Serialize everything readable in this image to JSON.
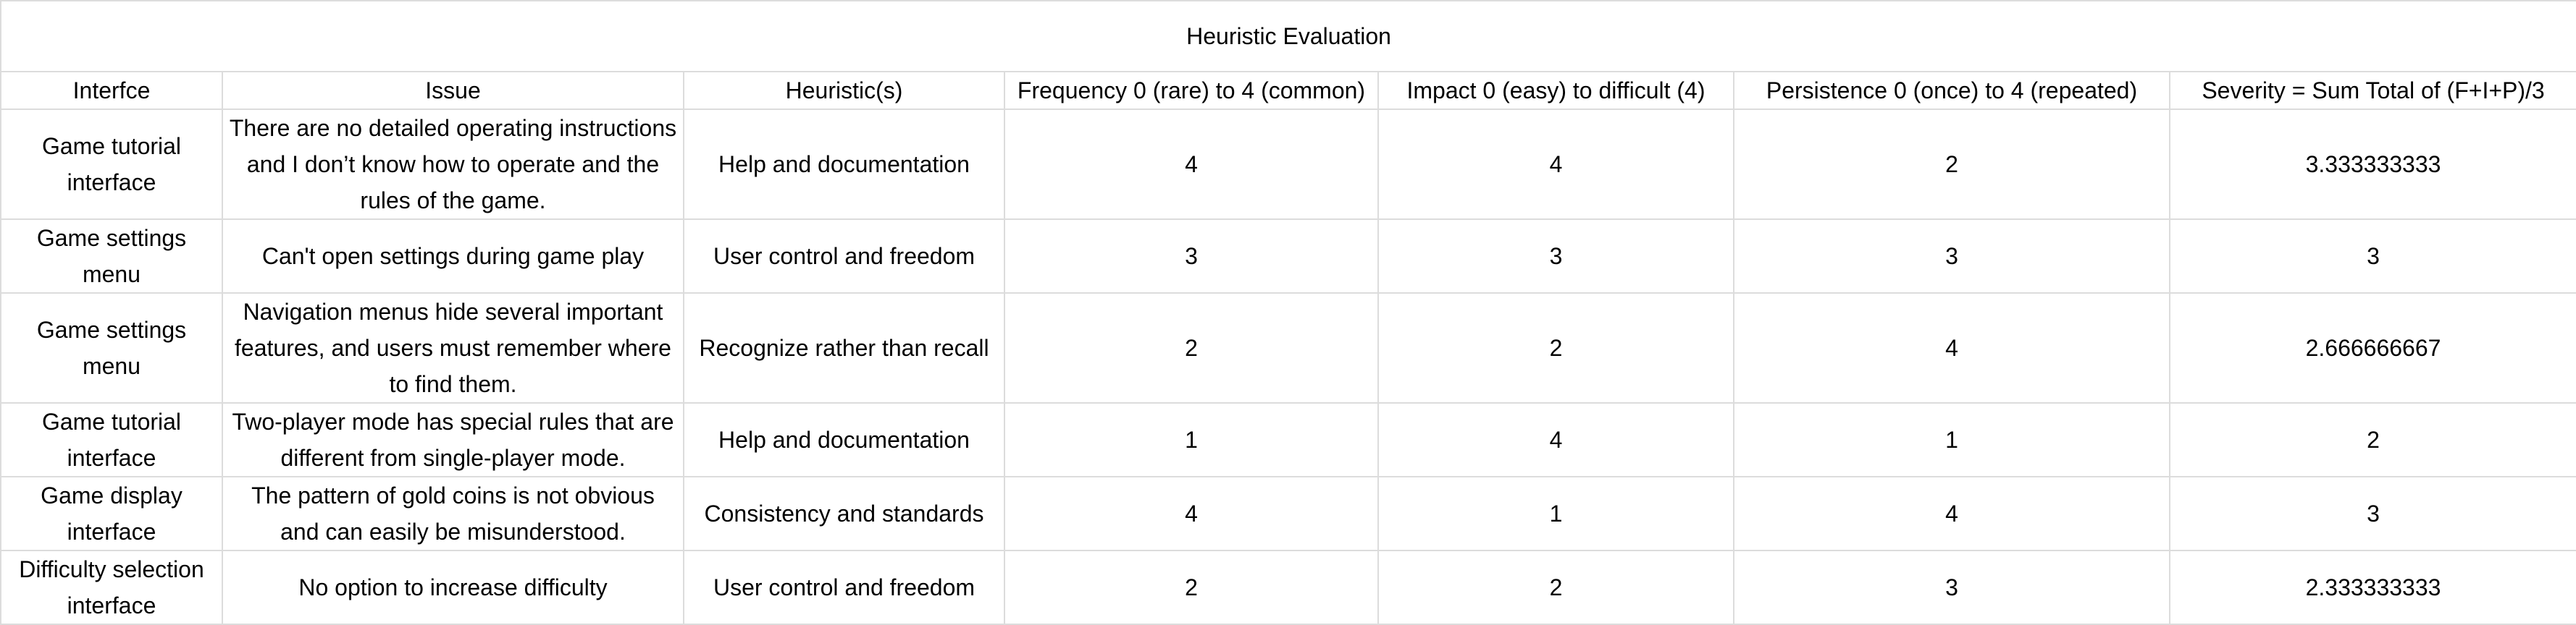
{
  "title": "Heuristic Evaluation",
  "columns": [
    "Interfce",
    "Issue",
    "Heuristic(s)",
    "Frequency 0 (rare) to 4 (common)",
    "Impact 0 (easy) to difficult (4)",
    "Persistence 0 (once) to 4 (repeated)",
    "Severity = Sum Total of (F+I+P)/3"
  ],
  "rows": [
    {
      "interface": "Game tutorial interface",
      "issue": "There are no detailed operating instructions and I don’t know how to operate and the rules of the game.",
      "heuristic": "Help and documentation",
      "frequency": "4",
      "impact": "4",
      "persistence": "2",
      "severity": "3.333333333"
    },
    {
      "interface": "Game settings menu",
      "issue": "Can't open settings during game play",
      "heuristic": "User control and freedom",
      "frequency": "3",
      "impact": "3",
      "persistence": "3",
      "severity": "3"
    },
    {
      "interface": "Game settings menu",
      "issue": "Navigation menus hide several important features, and users must remember where to find them.",
      "heuristic": "Recognize rather than recall",
      "frequency": "2",
      "impact": "2",
      "persistence": "4",
      "severity": "2.666666667"
    },
    {
      "interface": "Game tutorial interface",
      "issue": "Two-player mode has special rules that are different from single-player mode.",
      "heuristic": "Help and documentation",
      "frequency": "1",
      "impact": "4",
      "persistence": "1",
      "severity": "2"
    },
    {
      "interface": "Game display interface",
      "issue": "The pattern of gold coins is not obvious and can easily be misunderstood.",
      "heuristic": "Consistency and standards",
      "frequency": "4",
      "impact": "1",
      "persistence": "4",
      "severity": "3"
    },
    {
      "interface": "Difficulty selection interface",
      "issue": "No option to increase difficulty",
      "heuristic": "User control and freedom",
      "frequency": "2",
      "impact": "2",
      "persistence": "3",
      "severity": "2.333333333"
    }
  ]
}
